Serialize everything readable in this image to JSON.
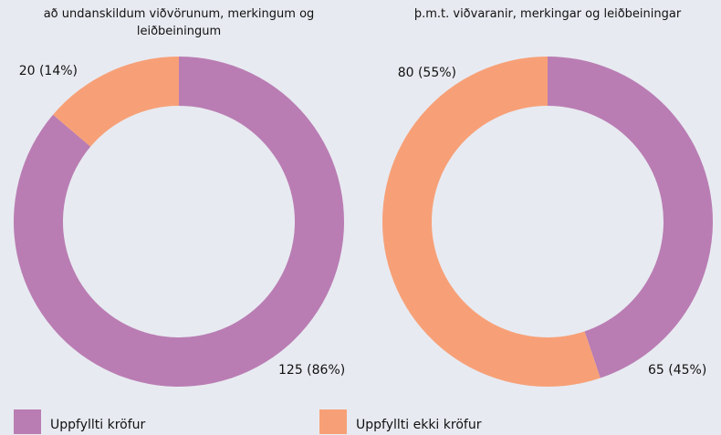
{
  "chart_data": [
    {
      "type": "donut",
      "title": "að undanskildum viðvörunum, merkingum og leiðbeiningum",
      "values": [
        125,
        20
      ],
      "value_labels": [
        "125 (86%)",
        "20 (14%)"
      ]
    },
    {
      "type": "donut",
      "title": "þ.m.t. viðvaranir, merkingar og leiðbeiningar",
      "values": [
        65,
        80
      ],
      "value_labels": [
        "65 (45%)",
        "80 (55%)"
      ]
    }
  ],
  "legend": [
    {
      "name": "Uppfyllti kröfur",
      "color": "#b97db3"
    },
    {
      "name": "Uppfyllti ekki kröfur",
      "color": "#f7a077"
    }
  ]
}
